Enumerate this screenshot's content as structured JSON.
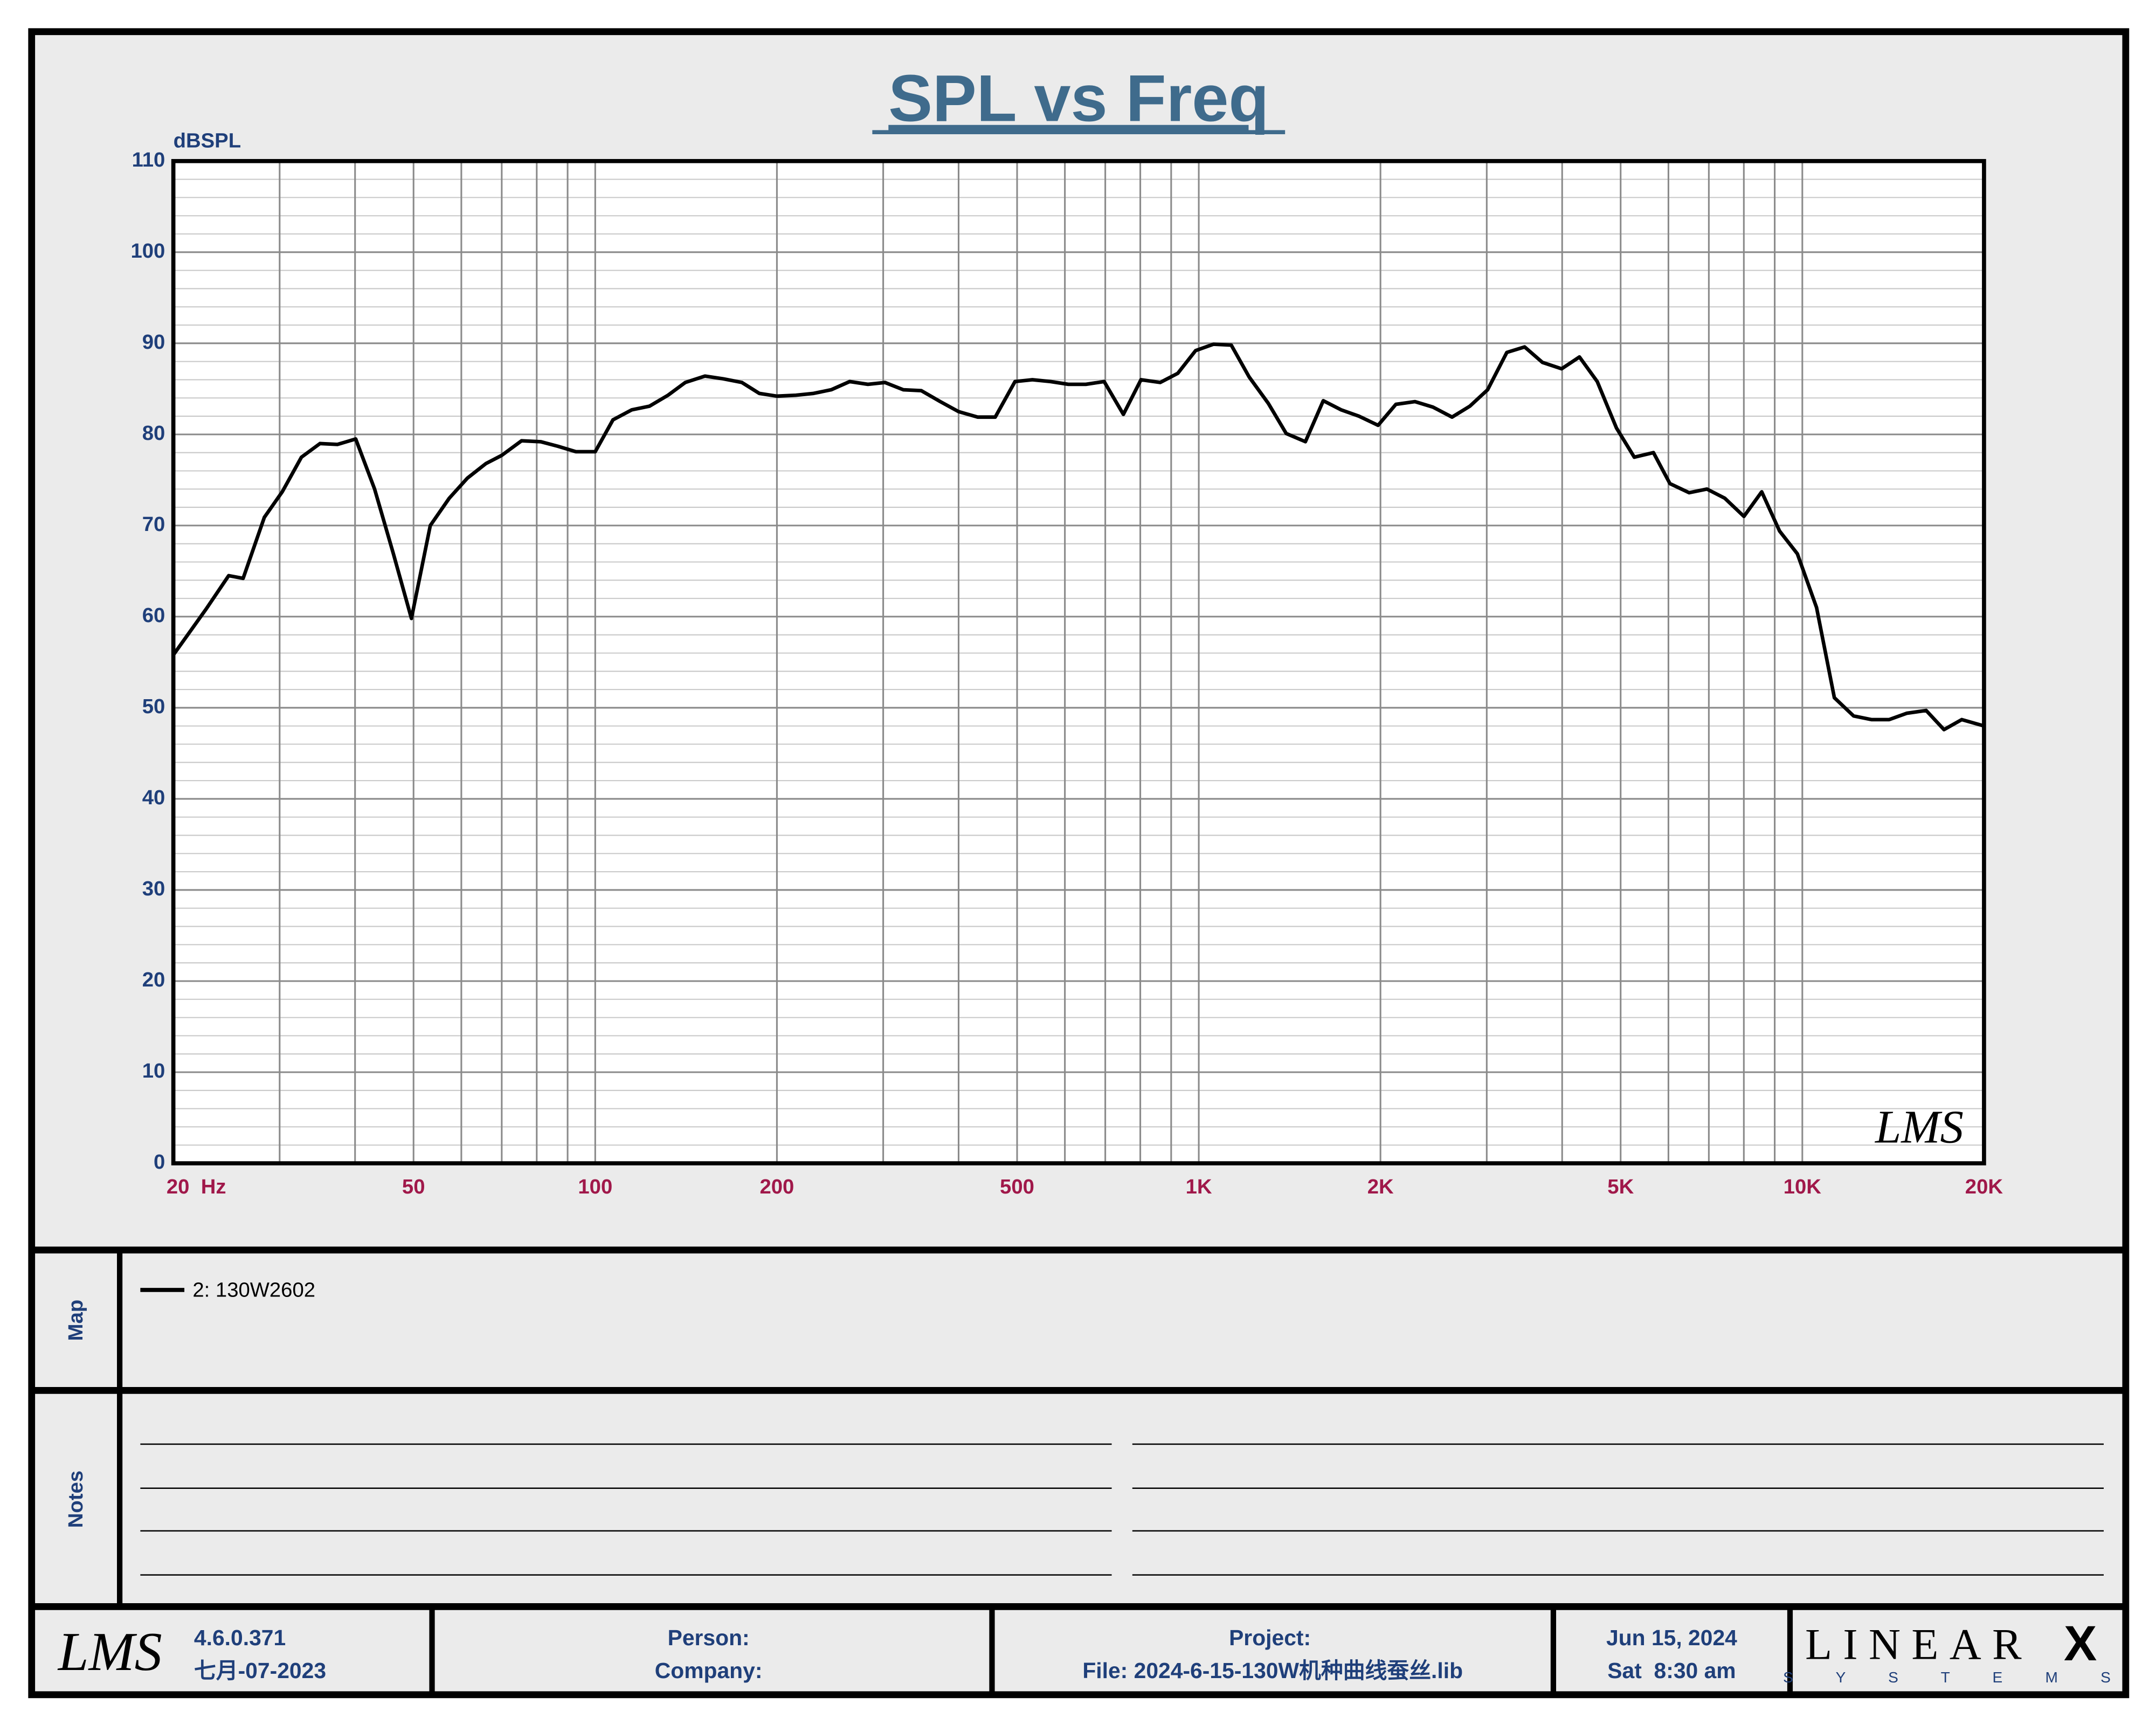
{
  "chart_data": {
    "type": "line",
    "title": "SPL vs Freq",
    "y_label": "dBSPL",
    "x": [
      20,
      22.7,
      24.7,
      26.1,
      28.3,
      30.3,
      32.6,
      35,
      37.4,
      40.1,
      43.1,
      46.3,
      49.6,
      53.3,
      57.3,
      61.4,
      65.9,
      70,
      75.5,
      81.2,
      86.7,
      92.9,
      100,
      107,
      115,
      123,
      132,
      141,
      152,
      163,
      175,
      187,
      200,
      215,
      230,
      246,
      264,
      283,
      302,
      324,
      347,
      373,
      400,
      430,
      460,
      496,
      530,
      568,
      608,
      650,
      697,
      750,
      802,
      863,
      923,
      988,
      1058,
      1132,
      1212,
      1304,
      1396,
      1502,
      1608,
      1721,
      1842,
      1982,
      2121,
      2282,
      2443,
      2628,
      2813,
      3010,
      3239,
      3467,
      3711,
      3992,
      4273,
      4573,
      4921,
      5267,
      5667,
      6034,
      6493,
      6949,
      7438,
      8003,
      8565,
      9167,
      9812,
      10558,
      11300,
      12160,
      13014,
      13929,
      14908,
      16040,
      17168,
      18374,
      20000
    ],
    "series": [
      {
        "name": "2: 130W2602",
        "color": "#000000",
        "values": [
          55.8,
          60.9,
          64.5,
          64.2,
          70.9,
          73.7,
          77.5,
          79.0,
          78.9,
          79.5,
          74.0,
          66.9,
          59.8,
          70.0,
          73.0,
          75.2,
          76.8,
          77.7,
          79.3,
          79.2,
          78.7,
          78.1,
          78.1,
          81.6,
          82.7,
          83.1,
          84.3,
          85.7,
          86.4,
          86.1,
          85.7,
          84.5,
          84.2,
          84.3,
          84.5,
          84.9,
          85.8,
          85.5,
          85.7,
          84.9,
          84.8,
          83.6,
          82.5,
          81.9,
          81.9,
          85.8,
          86.0,
          85.8,
          85.5,
          85.5,
          85.8,
          82.2,
          86.0,
          85.7,
          86.7,
          89.2,
          89.9,
          89.8,
          86.3,
          83.4,
          80.1,
          79.2,
          83.7,
          82.7,
          82.0,
          81.0,
          83.3,
          83.6,
          83.0,
          81.9,
          83.1,
          84.9,
          89.0,
          89.6,
          87.9,
          87.2,
          88.5,
          85.8,
          80.7,
          77.5,
          78.0,
          74.6,
          73.6,
          74.0,
          73.0,
          71.0,
          73.7,
          69.4,
          66.9,
          61.0,
          51.1,
          49.1,
          48.7,
          48.7,
          49.4,
          49.7,
          47.6,
          48.7,
          48.0
        ]
      }
    ],
    "xlim": [
      20,
      20000
    ],
    "xscale": "log",
    "ylim": [
      0,
      110
    ],
    "yticks": [
      0,
      10,
      20,
      30,
      40,
      50,
      60,
      70,
      80,
      90,
      100,
      110
    ],
    "xticks": [
      {
        "value": 20,
        "label": "20  Hz"
      },
      50,
      100,
      200,
      500,
      {
        "value": 1000,
        "label": "1K"
      },
      {
        "value": 2000,
        "label": "2K"
      },
      {
        "value": 5000,
        "label": "5K"
      },
      {
        "value": 10000,
        "label": "10K"
      },
      {
        "value": 20000,
        "label": "20K"
      }
    ],
    "x_minor_grid": [
      30,
      40,
      60,
      70,
      80,
      90,
      300,
      400,
      600,
      700,
      800,
      900,
      3000,
      4000,
      6000,
      7000,
      8000,
      9000
    ],
    "y_minor_grid": [
      2,
      4,
      6,
      8,
      12,
      14,
      16,
      18,
      22,
      24,
      26,
      28,
      32,
      34,
      36,
      38,
      42,
      44,
      46,
      48,
      52,
      54,
      56,
      58,
      62,
      64,
      66,
      68,
      72,
      74,
      76,
      78,
      82,
      84,
      86,
      88,
      92,
      94,
      96,
      98,
      102,
      104,
      106,
      108
    ],
    "grid": true,
    "watermark": "LMS"
  },
  "panels": {
    "map_label": "Map",
    "notes_label": "Notes"
  },
  "footer": {
    "logo": "LMS",
    "version": "4.6.0.371",
    "build_date": "七月-07-2023",
    "person": "Person:",
    "company": "Company:",
    "project": "Project:",
    "file": "File: 2024-6-15-130W机种曲线蚕丝.lib",
    "date": "Jun 15, 2024",
    "time": "Sat  8:30 am",
    "brand": "LINEAR",
    "brand_mark": "X",
    "brand_sub": "S Y S T E M S"
  }
}
